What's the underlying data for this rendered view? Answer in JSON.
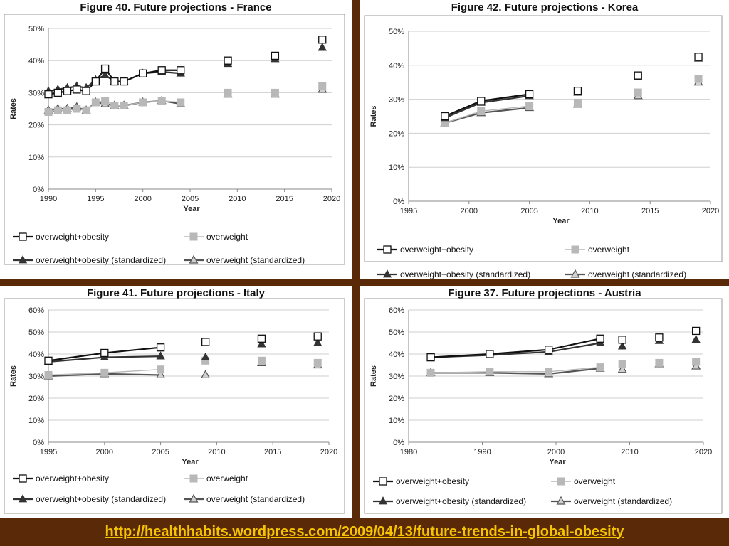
{
  "page": {
    "footer_link": "http://healthhabits.wordpress.com/2009/04/13/future-trends-in-global-obesity",
    "background": "#5a2a08",
    "link_color": "#f6c400"
  },
  "legend_labels": {
    "ow_ob": "overweight+obesity",
    "ow": "overweight",
    "ow_ob_std": "overweight+obesity (standardized)",
    "ow_std": "overweight (standardized)"
  },
  "series_colors": {
    "ow_ob": "#111111",
    "ow": "#b8b8b8",
    "ow_ob_std": "#333333",
    "ow_std": "#555555"
  },
  "chart_data": [
    {
      "id": "france",
      "type": "line",
      "title": "Figure 40.  Future projections - France",
      "xlabel": "Year",
      "ylabel": "Rates",
      "xlim": [
        1990,
        2020
      ],
      "ylim": [
        0,
        50
      ],
      "xticks": [
        "1990",
        "1995",
        "2000",
        "2005",
        "2010",
        "2015",
        "2020"
      ],
      "yticks": [
        "0%",
        "10%",
        "20%",
        "30%",
        "40%",
        "50%"
      ],
      "series": [
        {
          "key": "ow_ob",
          "name": "overweight+obesity",
          "x": [
            1990,
            1991,
            1992,
            1993,
            1994,
            1995,
            1996,
            1997,
            1998,
            2000,
            2002,
            2004
          ],
          "y": [
            29.5,
            30,
            30.5,
            31,
            30.5,
            33.5,
            37.5,
            33.5,
            33.5,
            36,
            37,
            37
          ]
        },
        {
          "key": "ow",
          "name": "overweight",
          "x": [
            1990,
            1991,
            1992,
            1993,
            1994,
            1995,
            1996,
            1997,
            1998,
            2000,
            2002,
            2004
          ],
          "y": [
            24,
            24.5,
            24.5,
            25,
            24.5,
            27,
            27.5,
            26,
            26,
            27,
            27.5,
            27
          ]
        },
        {
          "key": "ow_ob_std",
          "name": "overweight+obesity (standardized)",
          "x": [
            1990,
            1991,
            1992,
            1993,
            1994,
            1995,
            1996,
            1997,
            1998,
            2000,
            2002,
            2004
          ],
          "y": [
            30.5,
            31,
            31.5,
            32,
            31.5,
            34,
            35.5,
            33.5,
            33.5,
            36,
            36.5,
            36
          ]
        },
        {
          "key": "ow_std",
          "name": "overweight (standardized)",
          "x": [
            1990,
            1991,
            1992,
            1993,
            1994,
            1995,
            1996,
            1997,
            1998,
            2000,
            2002,
            2004
          ],
          "y": [
            24.5,
            25,
            25,
            25.5,
            24.5,
            27,
            26.5,
            26,
            26,
            27,
            27.5,
            26.5
          ]
        }
      ],
      "projections": [
        {
          "key": "ow_ob",
          "x": [
            2009,
            2014,
            2019
          ],
          "y": [
            40,
            41.5,
            46.5
          ]
        },
        {
          "key": "ow",
          "x": [
            2009,
            2014,
            2019
          ],
          "y": [
            30,
            30,
            32
          ]
        },
        {
          "key": "ow_ob_std",
          "x": [
            2009,
            2014,
            2019
          ],
          "y": [
            39,
            40.5,
            44
          ]
        },
        {
          "key": "ow_std",
          "x": [
            2009,
            2014,
            2019
          ],
          "y": [
            29.5,
            29.5,
            31
          ]
        }
      ]
    },
    {
      "id": "korea",
      "type": "line",
      "title": "Figure 42.  Future projections - Korea",
      "xlabel": "Year",
      "ylabel": "Rates",
      "xlim": [
        1995,
        2020
      ],
      "ylim": [
        0,
        50
      ],
      "xticks": [
        "1995",
        "2000",
        "2005",
        "2010",
        "2015",
        "2020"
      ],
      "yticks": [
        "0%",
        "10%",
        "20%",
        "30%",
        "40%",
        "50%"
      ],
      "series": [
        {
          "key": "ow_ob",
          "name": "overweight+obesity",
          "x": [
            1998,
            2001,
            2005
          ],
          "y": [
            25,
            29.5,
            31.5
          ]
        },
        {
          "key": "ow",
          "name": "overweight",
          "x": [
            1998,
            2001,
            2005
          ],
          "y": [
            23,
            26.5,
            28
          ]
        },
        {
          "key": "ow_ob_std",
          "name": "overweight+obesity (standardized)",
          "x": [
            1998,
            2001,
            2005
          ],
          "y": [
            24.5,
            29,
            31
          ]
        },
        {
          "key": "ow_std",
          "name": "overweight (standardized)",
          "x": [
            1998,
            2001,
            2005
          ],
          "y": [
            23,
            26,
            27.5
          ]
        }
      ],
      "projections": [
        {
          "key": "ow_ob",
          "x": [
            2009,
            2014,
            2019
          ],
          "y": [
            32.5,
            37,
            42.5
          ]
        },
        {
          "key": "ow",
          "x": [
            2009,
            2014,
            2019
          ],
          "y": [
            29,
            32,
            36
          ]
        },
        {
          "key": "ow_ob_std",
          "x": [
            2009,
            2014,
            2019
          ],
          "y": [
            32,
            36.5,
            42
          ]
        },
        {
          "key": "ow_std",
          "x": [
            2009,
            2014,
            2019
          ],
          "y": [
            28.5,
            31,
            35
          ]
        }
      ]
    },
    {
      "id": "italy",
      "type": "line",
      "title": "Figure 41.  Future projections - Italy",
      "xlabel": "Year",
      "ylabel": "Rates",
      "xlim": [
        1995,
        2020
      ],
      "ylim": [
        0,
        60
      ],
      "xticks": [
        "1995",
        "2000",
        "2005",
        "2010",
        "2015",
        "2020"
      ],
      "yticks": [
        "0%",
        "10%",
        "20%",
        "30%",
        "40%",
        "50%",
        "60%"
      ],
      "series": [
        {
          "key": "ow_ob",
          "name": "overweight+obesity",
          "x": [
            1995,
            2000,
            2005
          ],
          "y": [
            37,
            40.5,
            43
          ]
        },
        {
          "key": "ow",
          "name": "overweight",
          "x": [
            1995,
            2000,
            2005
          ],
          "y": [
            30.5,
            31.5,
            33
          ]
        },
        {
          "key": "ow_ob_std",
          "name": "overweight+obesity (standardized)",
          "x": [
            1995,
            2000,
            2005
          ],
          "y": [
            36.5,
            38.5,
            39
          ]
        },
        {
          "key": "ow_std",
          "name": "overweight (standardized)",
          "x": [
            1995,
            2000,
            2005
          ],
          "y": [
            30,
            31,
            30.5
          ]
        }
      ],
      "projections": [
        {
          "key": "ow_ob",
          "x": [
            2009,
            2014,
            2019
          ],
          "y": [
            45.5,
            47,
            48
          ]
        },
        {
          "key": "ow",
          "x": [
            2009,
            2014,
            2019
          ],
          "y": [
            37,
            37,
            36
          ]
        },
        {
          "key": "ow_ob_std",
          "x": [
            2009,
            2014,
            2019
          ],
          "y": [
            38.5,
            44.5,
            45
          ]
        },
        {
          "key": "ow_std",
          "x": [
            2009,
            2014,
            2019
          ],
          "y": [
            30.5,
            36,
            35
          ]
        }
      ]
    },
    {
      "id": "austria",
      "type": "line",
      "title": "Figure 37.  Future projections - Austria",
      "xlabel": "Year",
      "ylabel": "Rates",
      "xlim": [
        1980,
        2020
      ],
      "ylim": [
        0,
        60
      ],
      "xticks": [
        "1980",
        "1990",
        "2000",
        "2010",
        "2020"
      ],
      "yticks": [
        "0%",
        "10%",
        "20%",
        "30%",
        "40%",
        "50%",
        "60%"
      ],
      "series": [
        {
          "key": "ow_ob",
          "name": "overweight+obesity",
          "x": [
            1983,
            1991,
            1999,
            2006
          ],
          "y": [
            38.5,
            40,
            42,
            47
          ]
        },
        {
          "key": "ow",
          "name": "overweight",
          "x": [
            1983,
            1991,
            1999,
            2006
          ],
          "y": [
            31.5,
            32,
            32,
            34
          ]
        },
        {
          "key": "ow_ob_std",
          "name": "overweight+obesity (standardized)",
          "x": [
            1983,
            1991,
            1999,
            2006
          ],
          "y": [
            38.5,
            39.5,
            41,
            45
          ]
        },
        {
          "key": "ow_std",
          "name": "overweight (standardized)",
          "x": [
            1983,
            1991,
            1999,
            2006
          ],
          "y": [
            31.5,
            31.5,
            31,
            33.5
          ]
        }
      ],
      "projections": [
        {
          "key": "ow_ob",
          "x": [
            2009,
            2014,
            2019
          ],
          "y": [
            46.5,
            47.5,
            50.5
          ]
        },
        {
          "key": "ow",
          "x": [
            2009,
            2014,
            2019
          ],
          "y": [
            35.5,
            36,
            36.5
          ]
        },
        {
          "key": "ow_ob_std",
          "x": [
            2009,
            2014,
            2019
          ],
          "y": [
            43.5,
            46,
            46.5
          ]
        },
        {
          "key": "ow_std",
          "x": [
            2009,
            2014,
            2019
          ],
          "y": [
            33,
            35.5,
            34.5
          ]
        }
      ]
    }
  ]
}
